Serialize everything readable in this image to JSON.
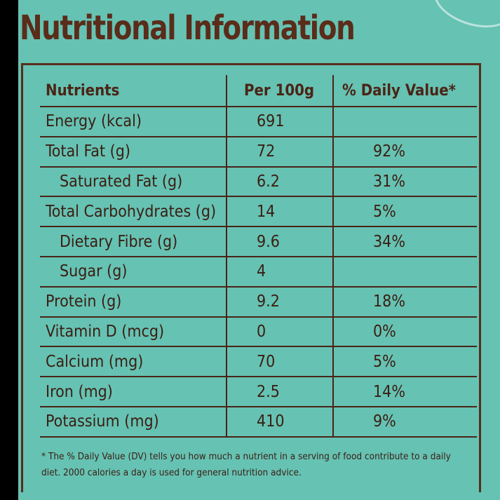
{
  "title": "Nutritional Information",
  "table": {
    "headers": [
      "Nutrients",
      "Per 100g",
      "% Daily Value*"
    ],
    "rows": [
      {
        "nutrient": "Energy (kcal)",
        "per100g": "691",
        "dv": ""
      },
      {
        "nutrient": "Total Fat (g)",
        "per100g": "72",
        "dv": "92%"
      },
      {
        "nutrient": "Saturated Fat (g)",
        "per100g": "6.2",
        "dv": "31%"
      },
      {
        "nutrient": "Total Carbohydrates (g)",
        "per100g": "14",
        "dv": "5%"
      },
      {
        "nutrient": "Dietary Fibre (g)",
        "per100g": "9.6",
        "dv": "34%"
      },
      {
        "nutrient": "Sugar (g)",
        "per100g": "4",
        "dv": ""
      },
      {
        "nutrient": "Protein (g)",
        "per100g": "9.2",
        "dv": "18%"
      },
      {
        "nutrient": "Vitamin D (mcg)",
        "per100g": "0",
        "dv": "0%"
      },
      {
        "nutrient": "Calcium (mg)",
        "per100g": "70",
        "dv": "5%"
      },
      {
        "nutrient": "Iron (mg)",
        "per100g": "2.5",
        "dv": "14%"
      },
      {
        "nutrient": "Potassium (mg)",
        "per100g": "410",
        "dv": "9%"
      }
    ]
  },
  "footnote": "* The % Daily Value (DV) tells you how much a nutrient in a serving of food contribute to a daily diet. 2000 calories a day is used for general nutrition advice.",
  "colors": {
    "background": "#66c2b3",
    "text": "#3a1e12",
    "title": "#5a2c1a",
    "outer": "#000000"
  }
}
